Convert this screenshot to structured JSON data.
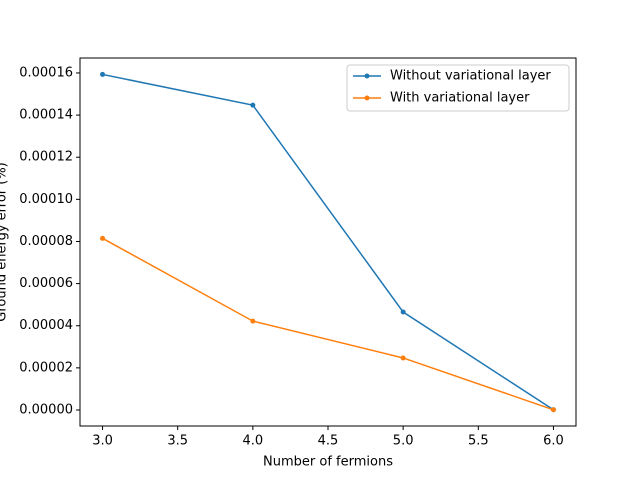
{
  "chart_data": {
    "type": "line",
    "x_label": "Number of fermions",
    "y_label": "Ground energy error (%)",
    "x": [
      3,
      4,
      5,
      6
    ],
    "series": [
      {
        "name": "Without variational layer",
        "color": "#1f77b4",
        "values": [
          0.0001593,
          0.0001447,
          4.65e-05,
          1e-07
        ]
      },
      {
        "name": "With variational layer",
        "color": "#ff7f0e",
        "values": [
          8.15e-05,
          4.22e-05,
          2.47e-05,
          1e-07
        ]
      }
    ],
    "xlim": [
      2.85,
      6.15
    ],
    "ylim": [
      -7.6e-06,
      0.0001671
    ],
    "xticks": [
      {
        "value": 3,
        "label": "3.0"
      },
      {
        "value": 3.5,
        "label": "3.5"
      },
      {
        "value": 4,
        "label": "4.0"
      },
      {
        "value": 4.5,
        "label": "4.5"
      },
      {
        "value": 5,
        "label": "5.0"
      },
      {
        "value": 5.5,
        "label": "5.5"
      },
      {
        "value": 6,
        "label": "6.0"
      }
    ],
    "yticks": [
      {
        "value": 0,
        "label": "0.00000"
      },
      {
        "value": 2e-05,
        "label": "0.00002"
      },
      {
        "value": 4e-05,
        "label": "0.00004"
      },
      {
        "value": 6e-05,
        "label": "0.00006"
      },
      {
        "value": 8e-05,
        "label": "0.00008"
      },
      {
        "value": 0.0001,
        "label": "0.00010"
      },
      {
        "value": 0.00012,
        "label": "0.00012"
      },
      {
        "value": 0.00014,
        "label": "0.00014"
      },
      {
        "value": 0.00016,
        "label": "0.00016"
      }
    ],
    "legend": "upper right"
  }
}
